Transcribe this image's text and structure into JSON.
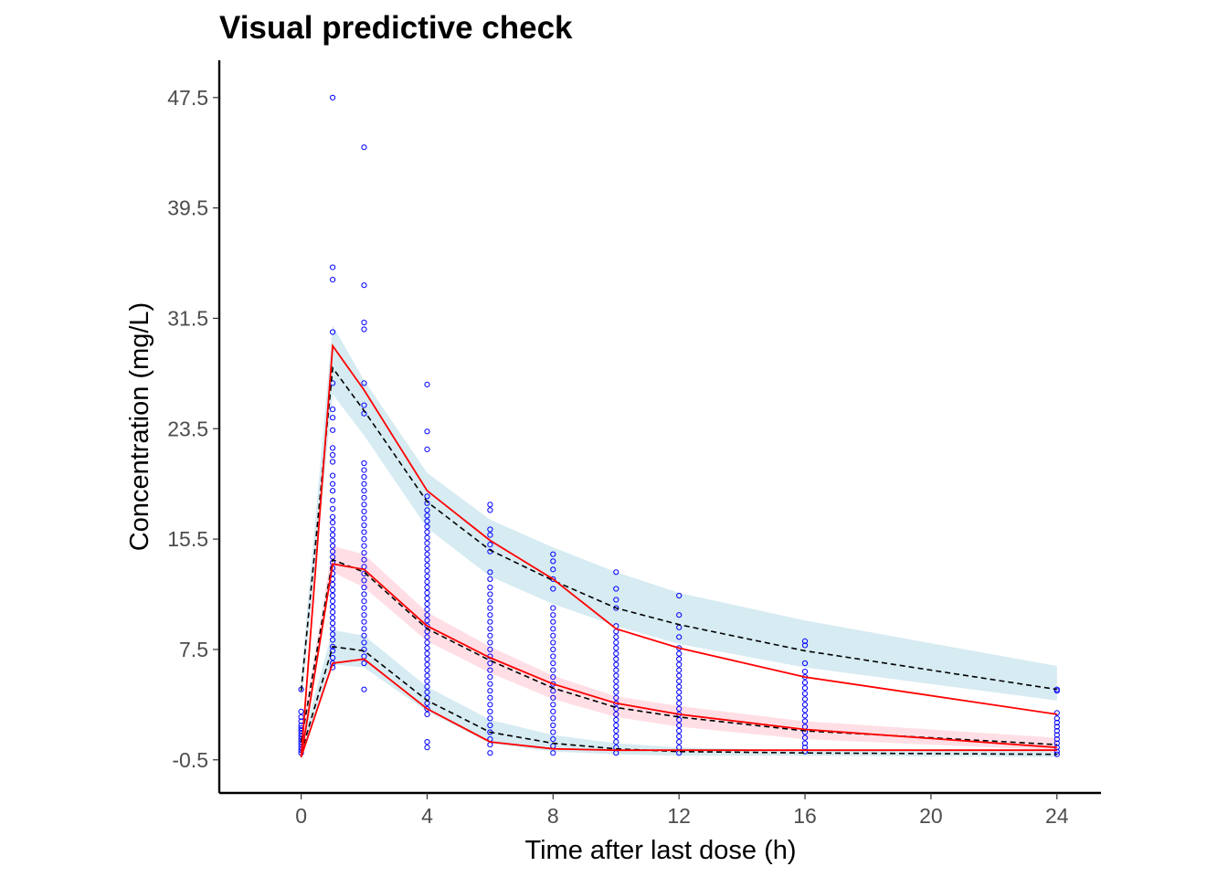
{
  "chart_data": {
    "type": "scatter",
    "title": "Visual predictive check",
    "xlabel": "Time after last dose (h)",
    "ylabel": "Concentration (mg/L)",
    "xlim": [
      -2.6,
      25.4
    ],
    "ylim": [
      -2.9,
      50.2
    ],
    "x_ticks": [
      0,
      4,
      8,
      12,
      16,
      20,
      24
    ],
    "y_ticks": [
      -0.5,
      7.5,
      15.5,
      23.5,
      31.5,
      39.5,
      47.5
    ],
    "grid": false,
    "legend": "none",
    "colors": {
      "observed_points": "#0000ff",
      "observed_percentile_lines": "#ff0000",
      "simulated_median_lines": "#000000",
      "outer_ci_band": "#add8e6",
      "median_ci_band": "#ffc0cb"
    },
    "observed": [
      {
        "x": 0,
        "y": [
          0.0,
          0.2,
          0.4,
          0.6,
          0.8,
          1.0,
          1.2,
          1.4,
          1.6,
          1.8,
          2.0,
          2.3,
          2.6,
          3.0,
          4.6
        ]
      },
      {
        "x": 1,
        "y": [
          47.5,
          35.2,
          34.3,
          30.5,
          26.8,
          24.9,
          24.3,
          23.4,
          22.1,
          21.6,
          21.1,
          20.1,
          19.5,
          19.0,
          18.3,
          17.7,
          17.1,
          16.7,
          16.2,
          15.8,
          15.4,
          15.0,
          14.6,
          14.2,
          13.8,
          13.4,
          13.0,
          12.6,
          12.2,
          11.8,
          11.4,
          11.0,
          10.6,
          10.2,
          9.8,
          9.4,
          9.0,
          8.6,
          8.2,
          7.7,
          7.4,
          6.9,
          6.5,
          6.2
        ]
      },
      {
        "x": 2,
        "y": [
          43.9,
          33.9,
          31.2,
          30.7,
          26.8,
          25.2,
          24.6,
          21.0,
          20.5,
          20.0,
          19.5,
          19.0,
          18.5,
          18.0,
          17.5,
          17.0,
          16.5,
          16.0,
          15.5,
          15.0,
          14.5,
          14.0,
          13.5,
          13.0,
          12.5,
          12.0,
          11.5,
          11.0,
          10.5,
          10.0,
          9.5,
          9.0,
          8.5,
          8.0,
          7.5,
          7.0,
          6.5,
          4.6
        ]
      },
      {
        "x": 4,
        "y": [
          26.7,
          23.3,
          22.0,
          18.6,
          18.1,
          17.6,
          17.2,
          16.8,
          16.4,
          16.0,
          15.6,
          15.2,
          14.8,
          14.4,
          14.0,
          13.6,
          13.2,
          12.8,
          12.4,
          12.0,
          11.6,
          11.2,
          10.8,
          10.4,
          10.0,
          9.6,
          9.2,
          8.8,
          8.4,
          8.0,
          7.6,
          7.2,
          6.8,
          6.4,
          6.0,
          5.6,
          5.2,
          4.8,
          4.4,
          4.0,
          3.6,
          3.2,
          2.8,
          0.8,
          0.4
        ]
      },
      {
        "x": 6,
        "y": [
          18.0,
          17.6,
          16.2,
          15.8,
          15.1,
          14.6,
          13.1,
          12.6,
          12.0,
          11.5,
          11.0,
          10.5,
          10.0,
          9.5,
          9.0,
          8.5,
          8.0,
          7.5,
          7.0,
          6.5,
          6.0,
          5.5,
          5.0,
          4.5,
          4.0,
          3.5,
          3.0,
          2.5,
          2.0,
          1.5,
          1.0,
          0.6,
          0.0
        ]
      },
      {
        "x": 8,
        "y": [
          14.4,
          13.9,
          13.3,
          12.6,
          11.9,
          10.5,
          10.0,
          9.5,
          9.0,
          8.5,
          8.0,
          7.5,
          7.0,
          6.5,
          6.0,
          5.5,
          5.0,
          4.5,
          4.0,
          3.5,
          3.0,
          2.5,
          2.0,
          1.5,
          1.0,
          0.5,
          0.0
        ]
      },
      {
        "x": 10,
        "y": [
          13.1,
          11.9,
          11.1,
          10.5,
          9.2,
          8.8,
          8.4,
          8.0,
          7.6,
          7.2,
          6.8,
          6.4,
          6.0,
          5.6,
          5.2,
          4.8,
          4.4,
          4.0,
          3.6,
          3.2,
          2.8,
          2.4,
          2.0,
          1.6,
          1.2,
          0.8,
          0.4,
          0.0
        ]
      },
      {
        "x": 12,
        "y": [
          11.4,
          10.0,
          9.1,
          8.4,
          7.6,
          7.2,
          6.8,
          6.4,
          6.0,
          5.6,
          5.2,
          4.8,
          4.4,
          4.0,
          3.6,
          3.2,
          2.8,
          2.4,
          2.0,
          1.6,
          1.2,
          0.8,
          0.4,
          0.0
        ]
      },
      {
        "x": 16,
        "y": [
          8.1,
          7.8,
          6.5,
          5.9,
          5.5,
          5.1,
          4.7,
          4.3,
          3.9,
          3.5,
          3.1,
          2.7,
          2.3,
          1.9,
          1.5,
          1.1,
          0.7,
          0.4,
          0.1
        ]
      },
      {
        "x": 24,
        "y": [
          4.6,
          4.5,
          2.9,
          2.5,
          2.2,
          1.9,
          1.6,
          1.3,
          1.0,
          0.7,
          0.4,
          0.1,
          -0.1
        ]
      }
    ],
    "series": [
      {
        "x": [
          0,
          1,
          2,
          4,
          6,
          8,
          10,
          12,
          16,
          24
        ],
        "values": [
          -0.3,
          29.5,
          26.3,
          19.0,
          15.4,
          12.6,
          9.0,
          7.6,
          5.5,
          2.8
        ],
        "style": "solid",
        "color": "#ff0000"
      },
      {
        "x": [
          0,
          1,
          2,
          4,
          6,
          8,
          10,
          12,
          16,
          24
        ],
        "values": [
          -0.3,
          13.7,
          13.3,
          9.2,
          6.9,
          5.0,
          3.6,
          2.8,
          1.7,
          0.4
        ],
        "style": "solid",
        "color": "#ff0000"
      },
      {
        "x": [
          0,
          1,
          2,
          4,
          6,
          8,
          10,
          12,
          16,
          24
        ],
        "values": [
          -0.3,
          6.5,
          6.8,
          3.2,
          0.8,
          0.3,
          0.2,
          0.2,
          0.2,
          0.2
        ],
        "style": "solid",
        "color": "#ff0000"
      },
      {
        "x": [
          0,
          1,
          2,
          4,
          6,
          8,
          10,
          12,
          16,
          24
        ],
        "values": [
          4.5,
          27.9,
          24.8,
          18.2,
          14.7,
          12.5,
          10.5,
          9.3,
          7.4,
          4.6
        ],
        "style": "dashed",
        "color": "#000000"
      },
      {
        "x": [
          0,
          1,
          2,
          4,
          6,
          8,
          10,
          12,
          16,
          24
        ],
        "values": [
          0.8,
          14.0,
          13.1,
          9.0,
          6.7,
          4.7,
          3.3,
          2.6,
          1.6,
          0.6
        ],
        "style": "dashed",
        "color": "#000000"
      },
      {
        "x": [
          0,
          1,
          2,
          4,
          6,
          8,
          10,
          12,
          16,
          24
        ],
        "values": [
          0.0,
          7.7,
          7.4,
          3.8,
          1.5,
          0.7,
          0.3,
          0.1,
          0.0,
          -0.1
        ],
        "style": "dashed",
        "color": "#000000"
      }
    ],
    "bands": [
      {
        "x": [
          0,
          1,
          2,
          4,
          6,
          8,
          10,
          12,
          16,
          24
        ],
        "lower": [
          3.5,
          26.0,
          23.0,
          16.3,
          12.8,
          10.8,
          9.2,
          7.9,
          6.2,
          3.8
        ],
        "upper": [
          5.5,
          31.0,
          27.0,
          20.3,
          16.9,
          14.9,
          13.1,
          11.6,
          9.6,
          6.3
        ],
        "color": "#add8e6"
      },
      {
        "x": [
          0,
          1,
          2,
          4,
          6,
          8,
          10,
          12,
          16,
          24
        ],
        "lower": [
          0.2,
          13.1,
          12.0,
          8.1,
          5.8,
          3.9,
          2.6,
          1.9,
          1.0,
          0.2
        ],
        "upper": [
          1.4,
          15.0,
          14.4,
          10.2,
          7.7,
          5.6,
          4.1,
          3.4,
          2.3,
          1.1
        ],
        "color": "#ffc0cb"
      },
      {
        "x": [
          0,
          1,
          2,
          4,
          6,
          8,
          10,
          12,
          16,
          24
        ],
        "lower": [
          -0.4,
          6.4,
          6.2,
          3.0,
          0.7,
          0.1,
          -0.1,
          -0.2,
          -0.2,
          -0.3
        ],
        "upper": [
          0.6,
          8.9,
          8.5,
          4.8,
          2.4,
          1.3,
          0.7,
          0.4,
          0.2,
          0.1
        ],
        "color": "#add8e6"
      }
    ]
  }
}
